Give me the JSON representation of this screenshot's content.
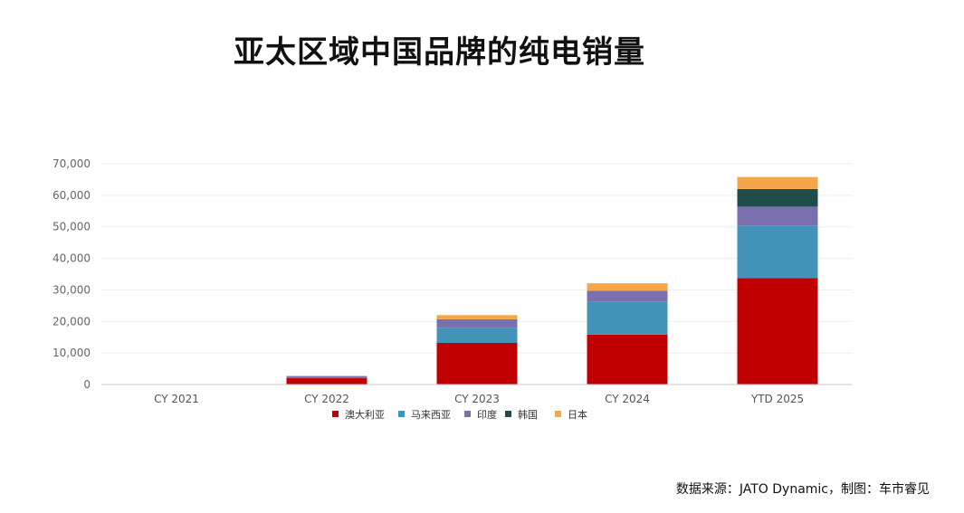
{
  "chart_data": {
    "type": "bar",
    "stacked": true,
    "title": "亚太区域中国品牌的纯电销量",
    "xlabel": "",
    "ylabel": "",
    "categories": [
      "CY 2021",
      "CY 2022",
      "CY 2023",
      "CY 2024",
      "YTD 2025"
    ],
    "series": [
      {
        "name": "澳大利亚",
        "color": "#C00000",
        "values": [
          0,
          2000,
          13200,
          15800,
          33700
        ]
      },
      {
        "name": "马来西亚",
        "color": "#4393B9",
        "values": [
          0,
          300,
          4800,
          10500,
          16700
        ]
      },
      {
        "name": "印度",
        "color": "#7A70B0",
        "values": [
          0,
          400,
          2700,
          3400,
          6000
        ]
      },
      {
        "name": "韩国",
        "color": "#1F4E4A",
        "values": [
          0,
          0,
          0,
          0,
          5600
        ]
      },
      {
        "name": "日本",
        "color": "#F5A54A",
        "values": [
          0,
          0,
          1300,
          2400,
          3800
        ]
      }
    ],
    "ylim": [
      0,
      70000
    ],
    "yticks": [
      "0",
      "10,000",
      "20,000",
      "30,000",
      "40,000",
      "50,000",
      "60,000",
      "70,000"
    ],
    "grid": true,
    "legend": "bottom"
  },
  "source": "数据来源：JATO Dynamic，制图：车市睿见"
}
